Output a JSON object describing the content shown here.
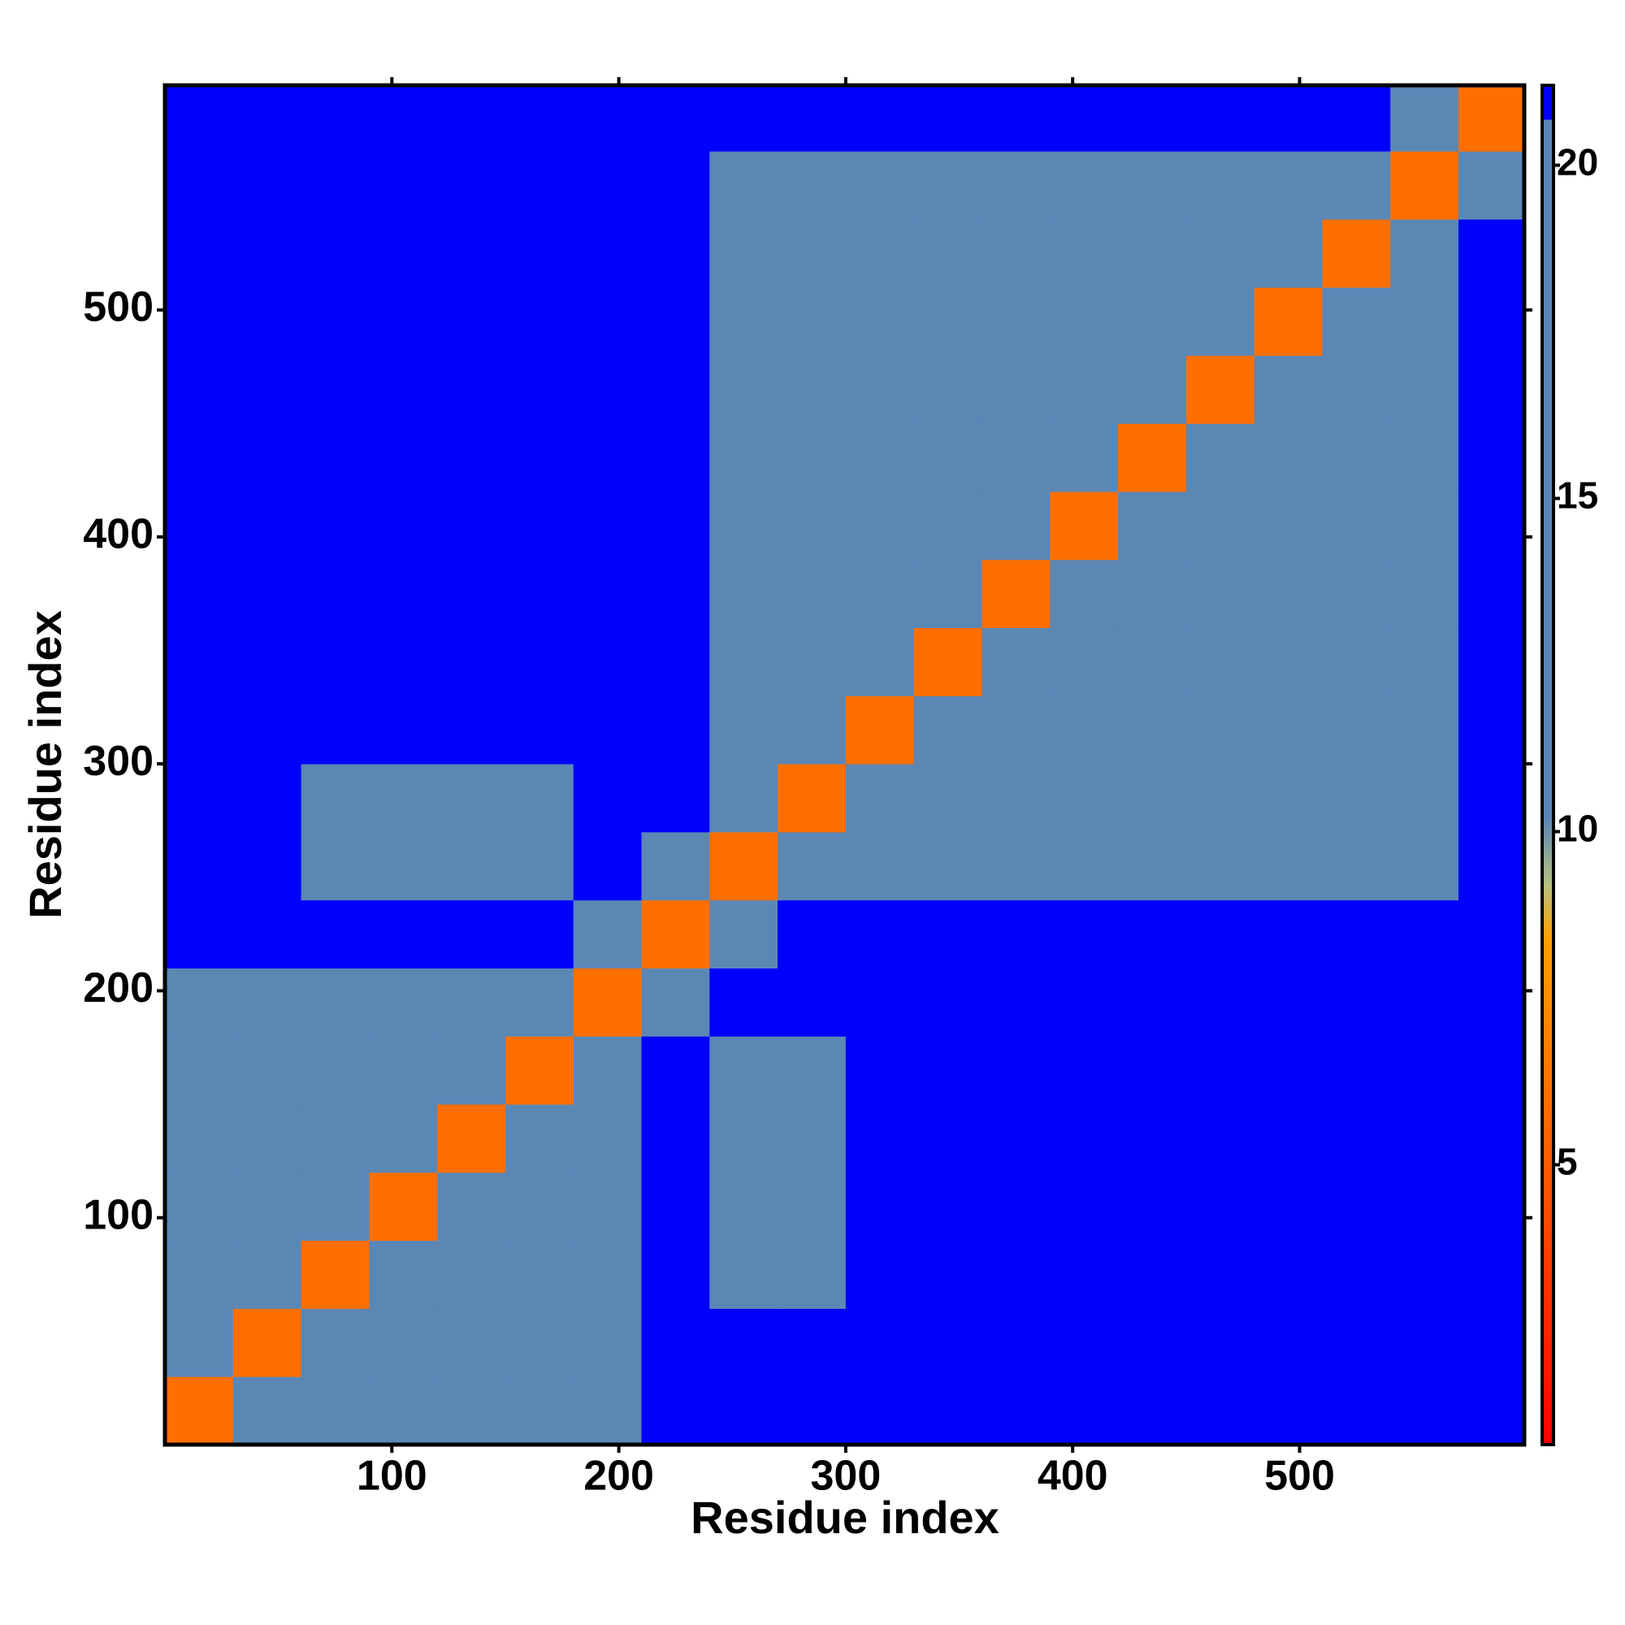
{
  "chart_data": {
    "type": "heatmap",
    "xlabel": "Residue index",
    "ylabel": "Residue index",
    "x": [
      0,
      30,
      60,
      90,
      120,
      150,
      180,
      210,
      240,
      270,
      300,
      330,
      360,
      390,
      420,
      450,
      480,
      510,
      540,
      570,
      599
    ],
    "y": [
      0,
      30,
      60,
      90,
      120,
      150,
      180,
      210,
      240,
      270,
      300,
      330,
      360,
      390,
      420,
      450,
      480,
      510,
      540,
      570,
      599
    ],
    "z": [
      [
        6,
        12,
        15,
        15,
        15,
        15,
        15,
        21,
        21,
        21,
        21,
        21,
        21,
        21,
        21,
        21,
        21,
        21,
        21,
        21
      ],
      [
        12,
        6,
        12,
        15,
        15,
        15,
        15,
        21,
        21,
        21,
        21,
        21,
        21,
        21,
        21,
        21,
        21,
        21,
        21,
        21
      ],
      [
        15,
        12,
        6,
        12,
        15,
        15,
        15,
        21,
        20.5,
        20.5,
        21,
        21,
        21,
        21,
        21,
        21,
        21,
        21,
        21,
        21
      ],
      [
        15,
        15,
        12,
        6,
        12,
        15,
        15,
        21,
        20.5,
        20.5,
        21,
        21,
        21,
        21,
        21,
        21,
        21,
        21,
        21,
        21
      ],
      [
        15,
        15,
        15,
        12,
        6,
        12,
        15,
        21,
        20.5,
        20.5,
        21,
        21,
        21,
        21,
        21,
        21,
        21,
        21,
        21,
        21
      ],
      [
        15,
        15,
        15,
        15,
        12,
        6,
        12,
        21,
        20.5,
        20.5,
        21,
        21,
        21,
        21,
        21,
        21,
        21,
        21,
        21,
        21
      ],
      [
        15,
        15,
        15,
        15,
        15,
        12,
        6,
        14,
        21,
        21,
        21,
        21,
        21,
        21,
        21,
        21,
        21,
        21,
        21,
        21
      ],
      [
        21,
        21,
        21,
        21,
        21,
        21,
        14,
        6,
        14,
        21,
        21,
        21,
        21,
        21,
        21,
        21,
        21,
        21,
        21,
        21
      ],
      [
        21,
        21,
        20.5,
        20.5,
        20.5,
        20.5,
        21,
        14,
        6,
        12,
        15,
        18,
        18,
        18,
        18,
        18,
        18,
        18,
        18,
        21
      ],
      [
        21,
        21,
        20.5,
        20.5,
        20.5,
        20.5,
        21,
        21,
        12,
        6,
        12,
        18,
        18,
        18,
        18,
        18,
        18,
        18,
        18,
        21
      ],
      [
        21,
        21,
        21,
        21,
        21,
        21,
        21,
        21,
        15,
        12,
        6,
        12,
        18,
        18,
        18,
        18,
        18,
        18,
        18,
        21
      ],
      [
        21,
        21,
        21,
        21,
        21,
        21,
        21,
        21,
        18,
        18,
        12,
        6,
        12,
        16,
        16,
        16,
        16,
        16,
        16,
        21
      ],
      [
        21,
        21,
        21,
        21,
        21,
        21,
        21,
        21,
        18,
        18,
        18,
        12,
        6,
        12,
        16,
        16,
        16,
        16,
        16,
        21
      ],
      [
        21,
        21,
        21,
        21,
        21,
        21,
        21,
        21,
        18,
        18,
        18,
        16,
        12,
        6,
        12,
        16,
        16,
        16,
        16,
        21
      ],
      [
        21,
        21,
        21,
        21,
        21,
        21,
        21,
        21,
        18,
        18,
        18,
        16,
        16,
        12,
        6,
        12,
        16,
        16,
        16,
        21
      ],
      [
        21,
        21,
        21,
        21,
        21,
        21,
        21,
        21,
        18,
        18,
        18,
        16,
        16,
        16,
        12,
        6,
        12,
        16,
        16,
        21
      ],
      [
        21,
        21,
        21,
        21,
        21,
        21,
        21,
        21,
        18,
        18,
        18,
        16,
        16,
        16,
        16,
        12,
        6,
        12,
        16,
        21
      ],
      [
        21,
        21,
        21,
        21,
        21,
        21,
        21,
        21,
        18,
        18,
        18,
        16,
        16,
        16,
        16,
        16,
        12,
        6,
        12,
        21
      ],
      [
        21,
        21,
        21,
        21,
        21,
        21,
        21,
        21,
        18,
        18,
        18,
        16,
        16,
        16,
        16,
        16,
        16,
        12,
        6,
        12
      ],
      [
        21,
        21,
        21,
        21,
        21,
        21,
        21,
        21,
        21,
        21,
        21,
        21,
        21,
        21,
        21,
        21,
        21,
        21,
        12,
        6
      ]
    ],
    "xlim": [
      0,
      599
    ],
    "ylim": [
      0,
      599
    ],
    "xticks": [
      100,
      200,
      300,
      400,
      500
    ],
    "yticks": [
      100,
      200,
      300,
      400,
      500
    ],
    "colorbar": {
      "lim": [
        0.8,
        21.2
      ],
      "ticks": [
        5,
        10,
        15,
        20
      ]
    },
    "colorscale": [
      [
        0.8,
        "#ff0000"
      ],
      [
        4.5,
        "#ff5000"
      ],
      [
        8.4,
        "#ffa000"
      ],
      [
        9.2,
        "#b8c080"
      ],
      [
        10.2,
        "#5b87b5"
      ],
      [
        20.7,
        "#5b87b5"
      ],
      [
        20.71,
        "#0000ff"
      ],
      [
        21.2,
        "#0000ff"
      ]
    ]
  }
}
